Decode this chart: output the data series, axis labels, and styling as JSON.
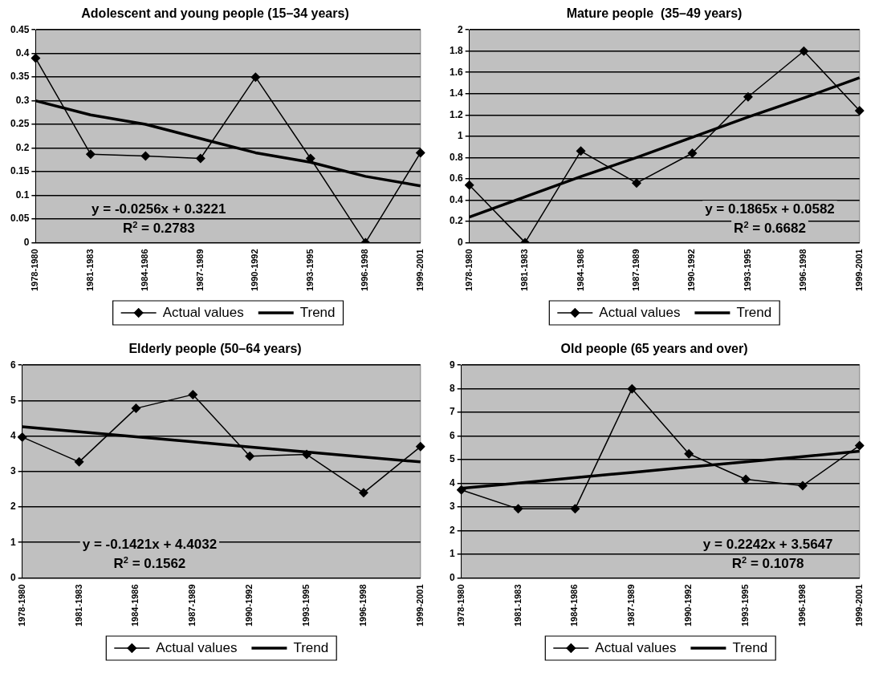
{
  "chart_data": [
    {
      "type": "line",
      "title": "Adolescent and young people (15–34 years)",
      "categories": [
        "1978-1980",
        "1981-1983",
        "1984-1986",
        "1987-1989",
        "1990-1992",
        "1993-1995",
        "1996-1998",
        "1999-2001"
      ],
      "series": [
        {
          "name": "Actual values",
          "color": "#000000",
          "marker": "diamond",
          "values": [
            0.39,
            0.187,
            0.183,
            0.178,
            0.35,
            0.178,
            0,
            0.19
          ]
        },
        {
          "name": "Trend",
          "color": "#000000",
          "marker": "none",
          "values": [
            0.3,
            0.27,
            0.25,
            0.22,
            0.19,
            0.17,
            0.14,
            0.12
          ]
        }
      ],
      "ylim": [
        0,
        0.45
      ],
      "yticks": [
        0,
        0.05,
        0.1,
        0.15,
        0.2,
        0.25,
        0.3,
        0.35,
        0.4,
        0.45
      ],
      "grid": "y",
      "legend": "bottom",
      "annotations": [
        "y = -0.0256x + 0.3221",
        "R$^{2}$ = 0.2783"
      ]
    },
    {
      "type": "line",
      "title": "Mature people  (35–49 years)",
      "categories": [
        "1978-1980",
        "1981-1983",
        "1984-1986",
        "1987-1989",
        "1990-1992",
        "1993-1995",
        "1996-1998",
        "1999-2001"
      ],
      "series": [
        {
          "name": "Actual values",
          "color": "#000000",
          "marker": "diamond",
          "values": [
            0.54,
            0,
            0.86,
            0.56,
            0.84,
            1.37,
            1.8,
            1.24
          ]
        },
        {
          "name": "Trend",
          "color": "#000000",
          "marker": "none",
          "values": [
            0.24,
            0.43,
            0.62,
            0.8,
            0.99,
            1.18,
            1.36,
            1.55
          ]
        }
      ],
      "ylim": [
        0,
        2
      ],
      "yticks": [
        0,
        0.2,
        0.4,
        0.6,
        0.8,
        1,
        1.2,
        1.4,
        1.6,
        1.8,
        2
      ],
      "grid": "y",
      "legend": "bottom",
      "annotations": [
        "y = 0.1865x + 0.0582",
        "R$^{2}$ = 0.6682"
      ]
    },
    {
      "type": "line",
      "title": "Elderly people (50–64 years)",
      "categories": [
        "1978-1980",
        "1981-1983",
        "1984-1986",
        "1987-1989",
        "1990-1992",
        "1993-1995",
        "1996-1998",
        "1999-2001"
      ],
      "series": [
        {
          "name": "Actual values",
          "color": "#000000",
          "marker": "diamond",
          "values": [
            3.97,
            3.27,
            4.78,
            5.17,
            3.43,
            3.48,
            2.4,
            3.7
          ]
        },
        {
          "name": "Trend",
          "color": "#000000",
          "marker": "none",
          "values": [
            4.26,
            4.12,
            3.98,
            3.84,
            3.69,
            3.55,
            3.41,
            3.27
          ]
        }
      ],
      "ylim": [
        0,
        6
      ],
      "yticks": [
        0,
        1,
        2,
        3,
        4,
        5,
        6
      ],
      "grid": "y",
      "legend": "bottom",
      "annotations": [
        "y = -0.1421x + 4.4032",
        "R$^{2}$ = 0.1562"
      ]
    },
    {
      "type": "line",
      "title": "Old people (65 years and over)",
      "categories": [
        "1978-1980",
        "1981-1983",
        "1984-1986",
        "1987-1989",
        "1990-1992",
        "1993-1995",
        "1996-1998",
        "1999-2001"
      ],
      "series": [
        {
          "name": "Actual values",
          "color": "#000000",
          "marker": "diamond",
          "values": [
            3.72,
            2.92,
            2.92,
            8,
            5.25,
            4.17,
            3.9,
            5.6
          ]
        },
        {
          "name": "Trend",
          "color": "#000000",
          "marker": "none",
          "values": [
            3.79,
            4.01,
            4.24,
            4.46,
            4.69,
            4.91,
            5.13,
            5.36
          ]
        }
      ],
      "ylim": [
        0,
        9
      ],
      "yticks": [
        0,
        1,
        2,
        3,
        4,
        5,
        6,
        7,
        8,
        9
      ],
      "grid": "y",
      "legend": "bottom",
      "annotations": [
        "y = 0.2242x + 3.5647",
        "R$^{2}$ = 0.1078"
      ]
    }
  ]
}
